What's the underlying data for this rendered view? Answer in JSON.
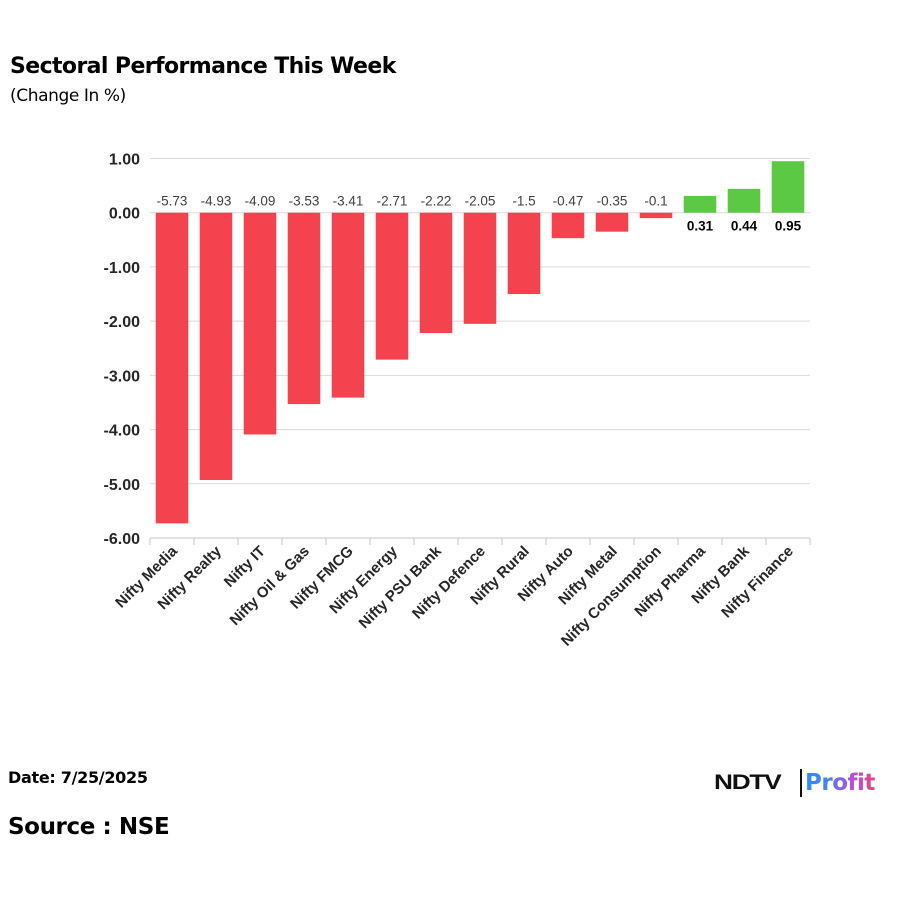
{
  "header": {
    "title": "Sectoral Performance This Week",
    "subtitle": "(Change In %)"
  },
  "footer": {
    "date": "Date: 7/25/2025",
    "source": "Source : NSE",
    "logo_left": "NDTV",
    "logo_right": "Profit"
  },
  "colors": {
    "negative": "#f4434f",
    "positive": "#5cc945",
    "grid": "#d9d9d9",
    "axis_text": "#262626",
    "neg_label": "#404040",
    "pos_label": "#000000"
  },
  "chart_data": {
    "type": "bar",
    "title": "Sectoral Performance This Week",
    "subtitle": "(Change In %)",
    "xlabel": "",
    "ylabel": "",
    "ylim": [
      -6,
      1
    ],
    "yticks": [
      1,
      0,
      -1,
      -2,
      -3,
      -4,
      -5,
      -6
    ],
    "ytick_labels": [
      "1.00",
      "0.00",
      "-1.00",
      "-2.00",
      "-3.00",
      "-4.00",
      "-5.00",
      "-6.00"
    ],
    "grid": true,
    "legend": "none",
    "categories": [
      "Nifty Media",
      "Nifty Realty",
      "Nifty IT",
      "Nifty Oil & Gas",
      "Nifty FMCG",
      "Nifty Energy",
      "Nifty PSU Bank",
      "Nifty Defence",
      "Nifty Rural",
      "Nifty Auto",
      "Nifty Metal",
      "Nifty Consumption",
      "Nifty Pharma",
      "Nifty Bank",
      "Nifty Finance"
    ],
    "values": [
      -5.73,
      -4.93,
      -4.09,
      -3.53,
      -3.41,
      -2.71,
      -2.22,
      -2.05,
      -1.5,
      -0.47,
      -0.35,
      -0.1,
      0.31,
      0.44,
      0.95
    ],
    "data_labels": [
      "-5.73",
      "-4.93",
      "-4.09",
      "-3.53",
      "-3.41",
      "-2.71",
      "-2.22",
      "-2.05",
      "-1.5",
      "-0.47",
      "-0.35",
      "-0.1",
      "0.31",
      "0.44",
      "0.95"
    ]
  }
}
